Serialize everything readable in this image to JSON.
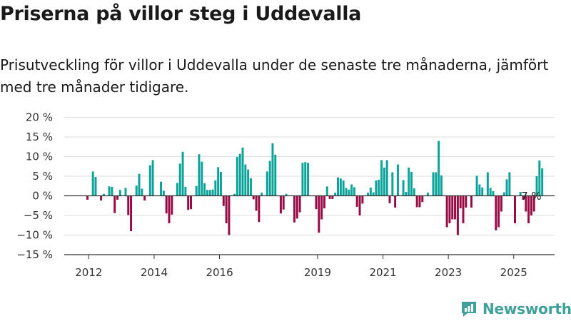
{
  "header": {
    "title": "Priserna på villor steg i Uddevalla",
    "subtitle": "Prisutveckling för villor i Uddevalla under de senaste tre månaderna, jämfört med tre månader tidigare."
  },
  "branding": {
    "name": "Newsworthy",
    "logo_icon": "newsworthy-logo-icon"
  },
  "colors": {
    "positive": "#0ba39a",
    "negative": "#980b44",
    "grid": "#dddddd",
    "axis": "#333333",
    "brand": "#3fa19a"
  },
  "chart_data": {
    "type": "bar",
    "title": "",
    "xlabel": "",
    "ylabel": "",
    "ylim": [
      -15,
      20
    ],
    "yticks": [
      -15,
      -10,
      -5,
      0,
      5,
      10,
      15,
      20
    ],
    "ytick_labels": [
      "−15 %",
      "−10 %",
      "−5 %",
      "0 %",
      "5 %",
      "10 %",
      "15 %",
      "20 %"
    ],
    "grid": true,
    "xtick_labels": [
      "2012",
      "2014",
      "2016",
      "2019",
      "2021",
      "2023",
      "2025"
    ],
    "xtick_years": [
      2012,
      2014,
      2016,
      2019,
      2021,
      2023,
      2025
    ],
    "x_start": 2011.96,
    "x_step": 0.0833,
    "annotation": {
      "text": "7 %",
      "index": 163
    },
    "values": [
      -1,
      0,
      6.2,
      4.8,
      0,
      -1.2,
      0.5,
      0,
      2.4,
      2.3,
      -4.4,
      -1,
      1.5,
      0,
      2,
      -4.9,
      -9,
      0,
      2.6,
      5.6,
      1.8,
      -1.2,
      0,
      7.8,
      9.1,
      0,
      0,
      3.6,
      1.3,
      -4.5,
      -7,
      -4.8,
      0,
      3.3,
      8.2,
      11.2,
      2.3,
      -3.6,
      -3.4,
      0,
      2.5,
      10.6,
      8.7,
      3.2,
      1.5,
      1.5,
      1.6,
      3.9,
      7.3,
      6.1,
      -2.6,
      -7,
      -10,
      0,
      0.5,
      9.9,
      10.7,
      12.3,
      8,
      6.7,
      4.5,
      -0.9,
      -3.8,
      -6.7,
      0.8,
      0,
      6.2,
      8.9,
      13.4,
      10.5,
      0,
      -4.5,
      -3.5,
      0.5,
      0,
      0,
      -6.8,
      -5.8,
      -4.2,
      8.4,
      8.6,
      8.4,
      0,
      0,
      -3.4,
      -9.4,
      -6,
      -3.2,
      2.4,
      -0.8,
      -0.8,
      0.8,
      4.7,
      4.4,
      3.9,
      2,
      1.6,
      2.9,
      2.2,
      -2.8,
      -5,
      -2,
      0,
      0.8,
      2.1,
      0.9,
      3.9,
      4.1,
      9.1,
      7.2,
      9.1,
      -1.9,
      6,
      -3,
      8,
      0,
      4,
      1,
      7.2,
      6.1,
      1.9,
      -2.9,
      -2.9,
      -1.6,
      0,
      0.8,
      0,
      6,
      6,
      14,
      5.2,
      0,
      -8,
      -7,
      -6,
      -6,
      -10,
      -3.2,
      -7,
      -3,
      0,
      -3,
      0,
      5.1,
      2.9,
      2.1,
      0,
      6,
      2,
      1.2,
      -8.8,
      -8,
      -4,
      0.9,
      4.2,
      6,
      0,
      -7,
      0,
      1,
      -1,
      -4,
      -7,
      -5,
      -4,
      5,
      9,
      7
    ]
  }
}
